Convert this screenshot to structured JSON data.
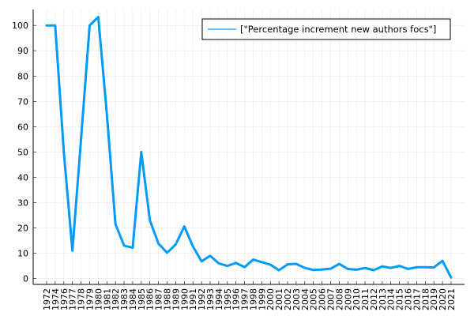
{
  "chart_data": {
    "type": "line",
    "title": "",
    "xlabel": "",
    "ylabel": "",
    "categories": [
      "1972",
      "1974",
      "1976",
      "1977",
      "1978",
      "1979",
      "1980",
      "1981",
      "1982",
      "1983",
      "1984",
      "1985",
      "1986",
      "1987",
      "1988",
      "1989",
      "1990",
      "1991",
      "1992",
      "1993",
      "1994",
      "1995",
      "1996",
      "1997",
      "1998",
      "1999",
      "2000",
      "2001",
      "2002",
      "2003",
      "2004",
      "2005",
      "2006",
      "2007",
      "2008",
      "2009",
      "2010",
      "2011",
      "2012",
      "2013",
      "2014",
      "2015",
      "2016",
      "2017",
      "2018",
      "2019",
      "2020",
      "2021"
    ],
    "series": [
      {
        "name": "[\"Percentage increment new authors focs\"]",
        "color": "#009af9",
        "values": [
          100,
          100,
          50,
          11,
          55,
          100,
          103.3,
          65,
          21.5,
          13,
          12.2,
          50,
          23,
          13.8,
          10.2,
          13.5,
          20.6,
          12.7,
          6.8,
          9,
          6,
          5,
          6.2,
          4.5,
          7.5,
          6.5,
          5.5,
          3.3,
          5.6,
          5.8,
          4.2,
          3.4,
          3.6,
          3.9,
          5.8,
          3.8,
          3.5,
          4.2,
          3.3,
          4.8,
          4.2,
          5,
          3.8,
          4.5,
          4.5,
          4.4,
          7,
          0.4
        ]
      }
    ],
    "ylim": [
      -2.3,
      106.3
    ],
    "yticks": [
      0,
      10,
      20,
      30,
      40,
      50,
      60,
      70,
      80,
      90,
      100
    ],
    "grid": true,
    "legend": "top-right"
  }
}
